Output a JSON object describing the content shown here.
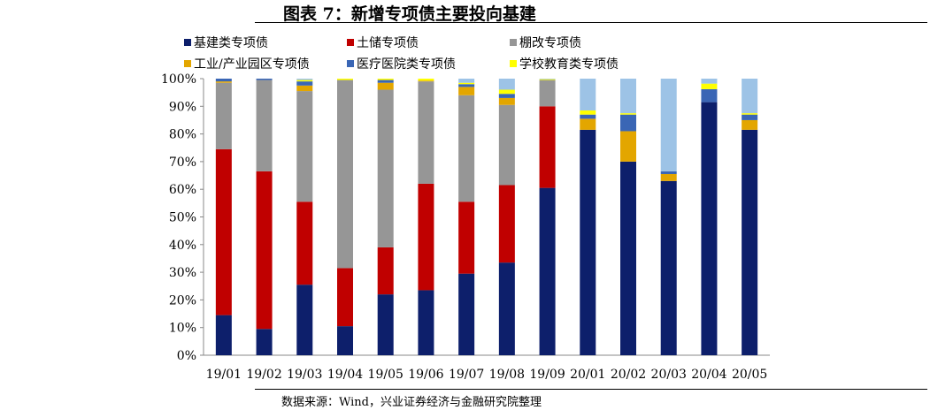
{
  "title": "图表 7：新增专项债主要投向基建",
  "source": "数据来源：Wind，兴业证券经济与金融研究院整理",
  "chart_data": {
    "type": "bar",
    "stacked": true,
    "categories": [
      "19/01",
      "19/02",
      "19/03",
      "19/04",
      "19/05",
      "19/06",
      "19/07",
      "19/08",
      "19/09",
      "20/01",
      "20/02",
      "20/03",
      "20/04",
      "20/05"
    ],
    "ylim": [
      0,
      100
    ],
    "yticks": [
      "0%",
      "10%",
      "20%",
      "30%",
      "40%",
      "50%",
      "60%",
      "70%",
      "80%",
      "90%",
      "100%"
    ],
    "legend_position": "top",
    "series": [
      {
        "name": "基建类专项债",
        "color": "#0d1f6b",
        "values": [
          14.5,
          9.5,
          25.5,
          10.5,
          22,
          23.5,
          29.5,
          33.5,
          60.5,
          81.5,
          70,
          63,
          91.5,
          81.5
        ]
      },
      {
        "name": "土储专项债",
        "color": "#c00000",
        "values": [
          60,
          57,
          30,
          21,
          17,
          38.5,
          26,
          28,
          29.5,
          0,
          0,
          0,
          0,
          0
        ]
      },
      {
        "name": "棚改专项债",
        "color": "#969696",
        "values": [
          24,
          33,
          40,
          68,
          57,
          37,
          38.5,
          29,
          9.5,
          0,
          0,
          0,
          0,
          0
        ]
      },
      {
        "name": "工业/产业园区专项债",
        "color": "#e3a600",
        "values": [
          0.5,
          0,
          2,
          0,
          2.5,
          0.3,
          3,
          2.5,
          0,
          4,
          11,
          2.5,
          0,
          3.5
        ]
      },
      {
        "name": "医疗医院类专项债",
        "color": "#3a66b5",
        "values": [
          1,
          0.5,
          1.5,
          0,
          1,
          0,
          1,
          1.5,
          0,
          1.5,
          6,
          1,
          4.7,
          2
        ]
      },
      {
        "name": "学校教育类专项债",
        "color": "#ffff00",
        "values": [
          0,
          0,
          0.5,
          0.5,
          0.5,
          0.7,
          0.5,
          1.5,
          0.3,
          1.5,
          0.5,
          0,
          2,
          0.5
        ]
      },
      {
        "color": "#9dc3e6",
        "values": [
          0,
          0,
          0.5,
          0,
          0,
          0,
          1.5,
          4,
          0.2,
          11.5,
          12.5,
          33.5,
          1.8,
          12.5
        ]
      }
    ]
  }
}
